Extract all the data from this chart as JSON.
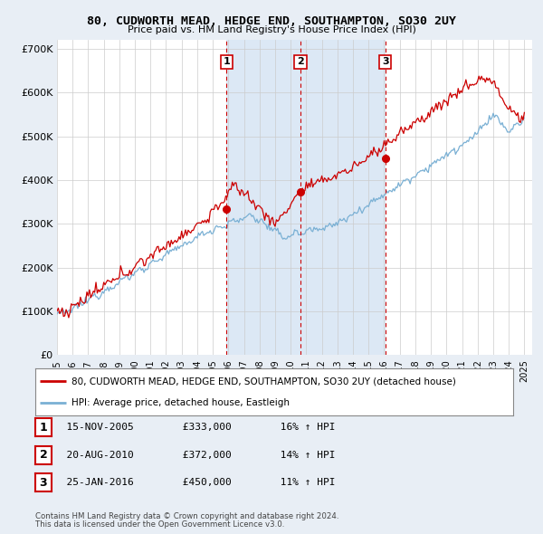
{
  "title": "80, CUDWORTH MEAD, HEDGE END, SOUTHAMPTON, SO30 2UY",
  "subtitle": "Price paid vs. HM Land Registry's House Price Index (HPI)",
  "ylim": [
    0,
    720000
  ],
  "yticks": [
    0,
    100000,
    200000,
    300000,
    400000,
    500000,
    600000,
    700000
  ],
  "background_color": "#e8eef5",
  "plot_bg": "#ffffff",
  "shade_color": "#dce8f5",
  "grid_color": "#cccccc",
  "sale_color": "#cc0000",
  "hpi_color": "#7ab0d4",
  "transactions": [
    {
      "label": "1",
      "date": "15-NOV-2005",
      "price": 333000,
      "hpi_pct": "16%",
      "x_year": 2005.88
    },
    {
      "label": "2",
      "date": "20-AUG-2010",
      "price": 372000,
      "hpi_pct": "14%",
      "x_year": 2010.63
    },
    {
      "label": "3",
      "date": "25-JAN-2016",
      "price": 450000,
      "hpi_pct": "11%",
      "x_year": 2016.07
    }
  ],
  "legend_entry1": "80, CUDWORTH MEAD, HEDGE END, SOUTHAMPTON, SO30 2UY (detached house)",
  "legend_entry2": "HPI: Average price, detached house, Eastleigh",
  "footer1": "Contains HM Land Registry data © Crown copyright and database right 2024.",
  "footer2": "This data is licensed under the Open Government Licence v3.0.",
  "xmin": 1995,
  "xmax": 2025.5,
  "xtick_years": [
    1995,
    1996,
    1997,
    1998,
    1999,
    2000,
    2001,
    2002,
    2003,
    2004,
    2005,
    2006,
    2007,
    2008,
    2009,
    2010,
    2011,
    2012,
    2013,
    2014,
    2015,
    2016,
    2017,
    2018,
    2019,
    2020,
    2021,
    2022,
    2023,
    2024,
    2025
  ]
}
